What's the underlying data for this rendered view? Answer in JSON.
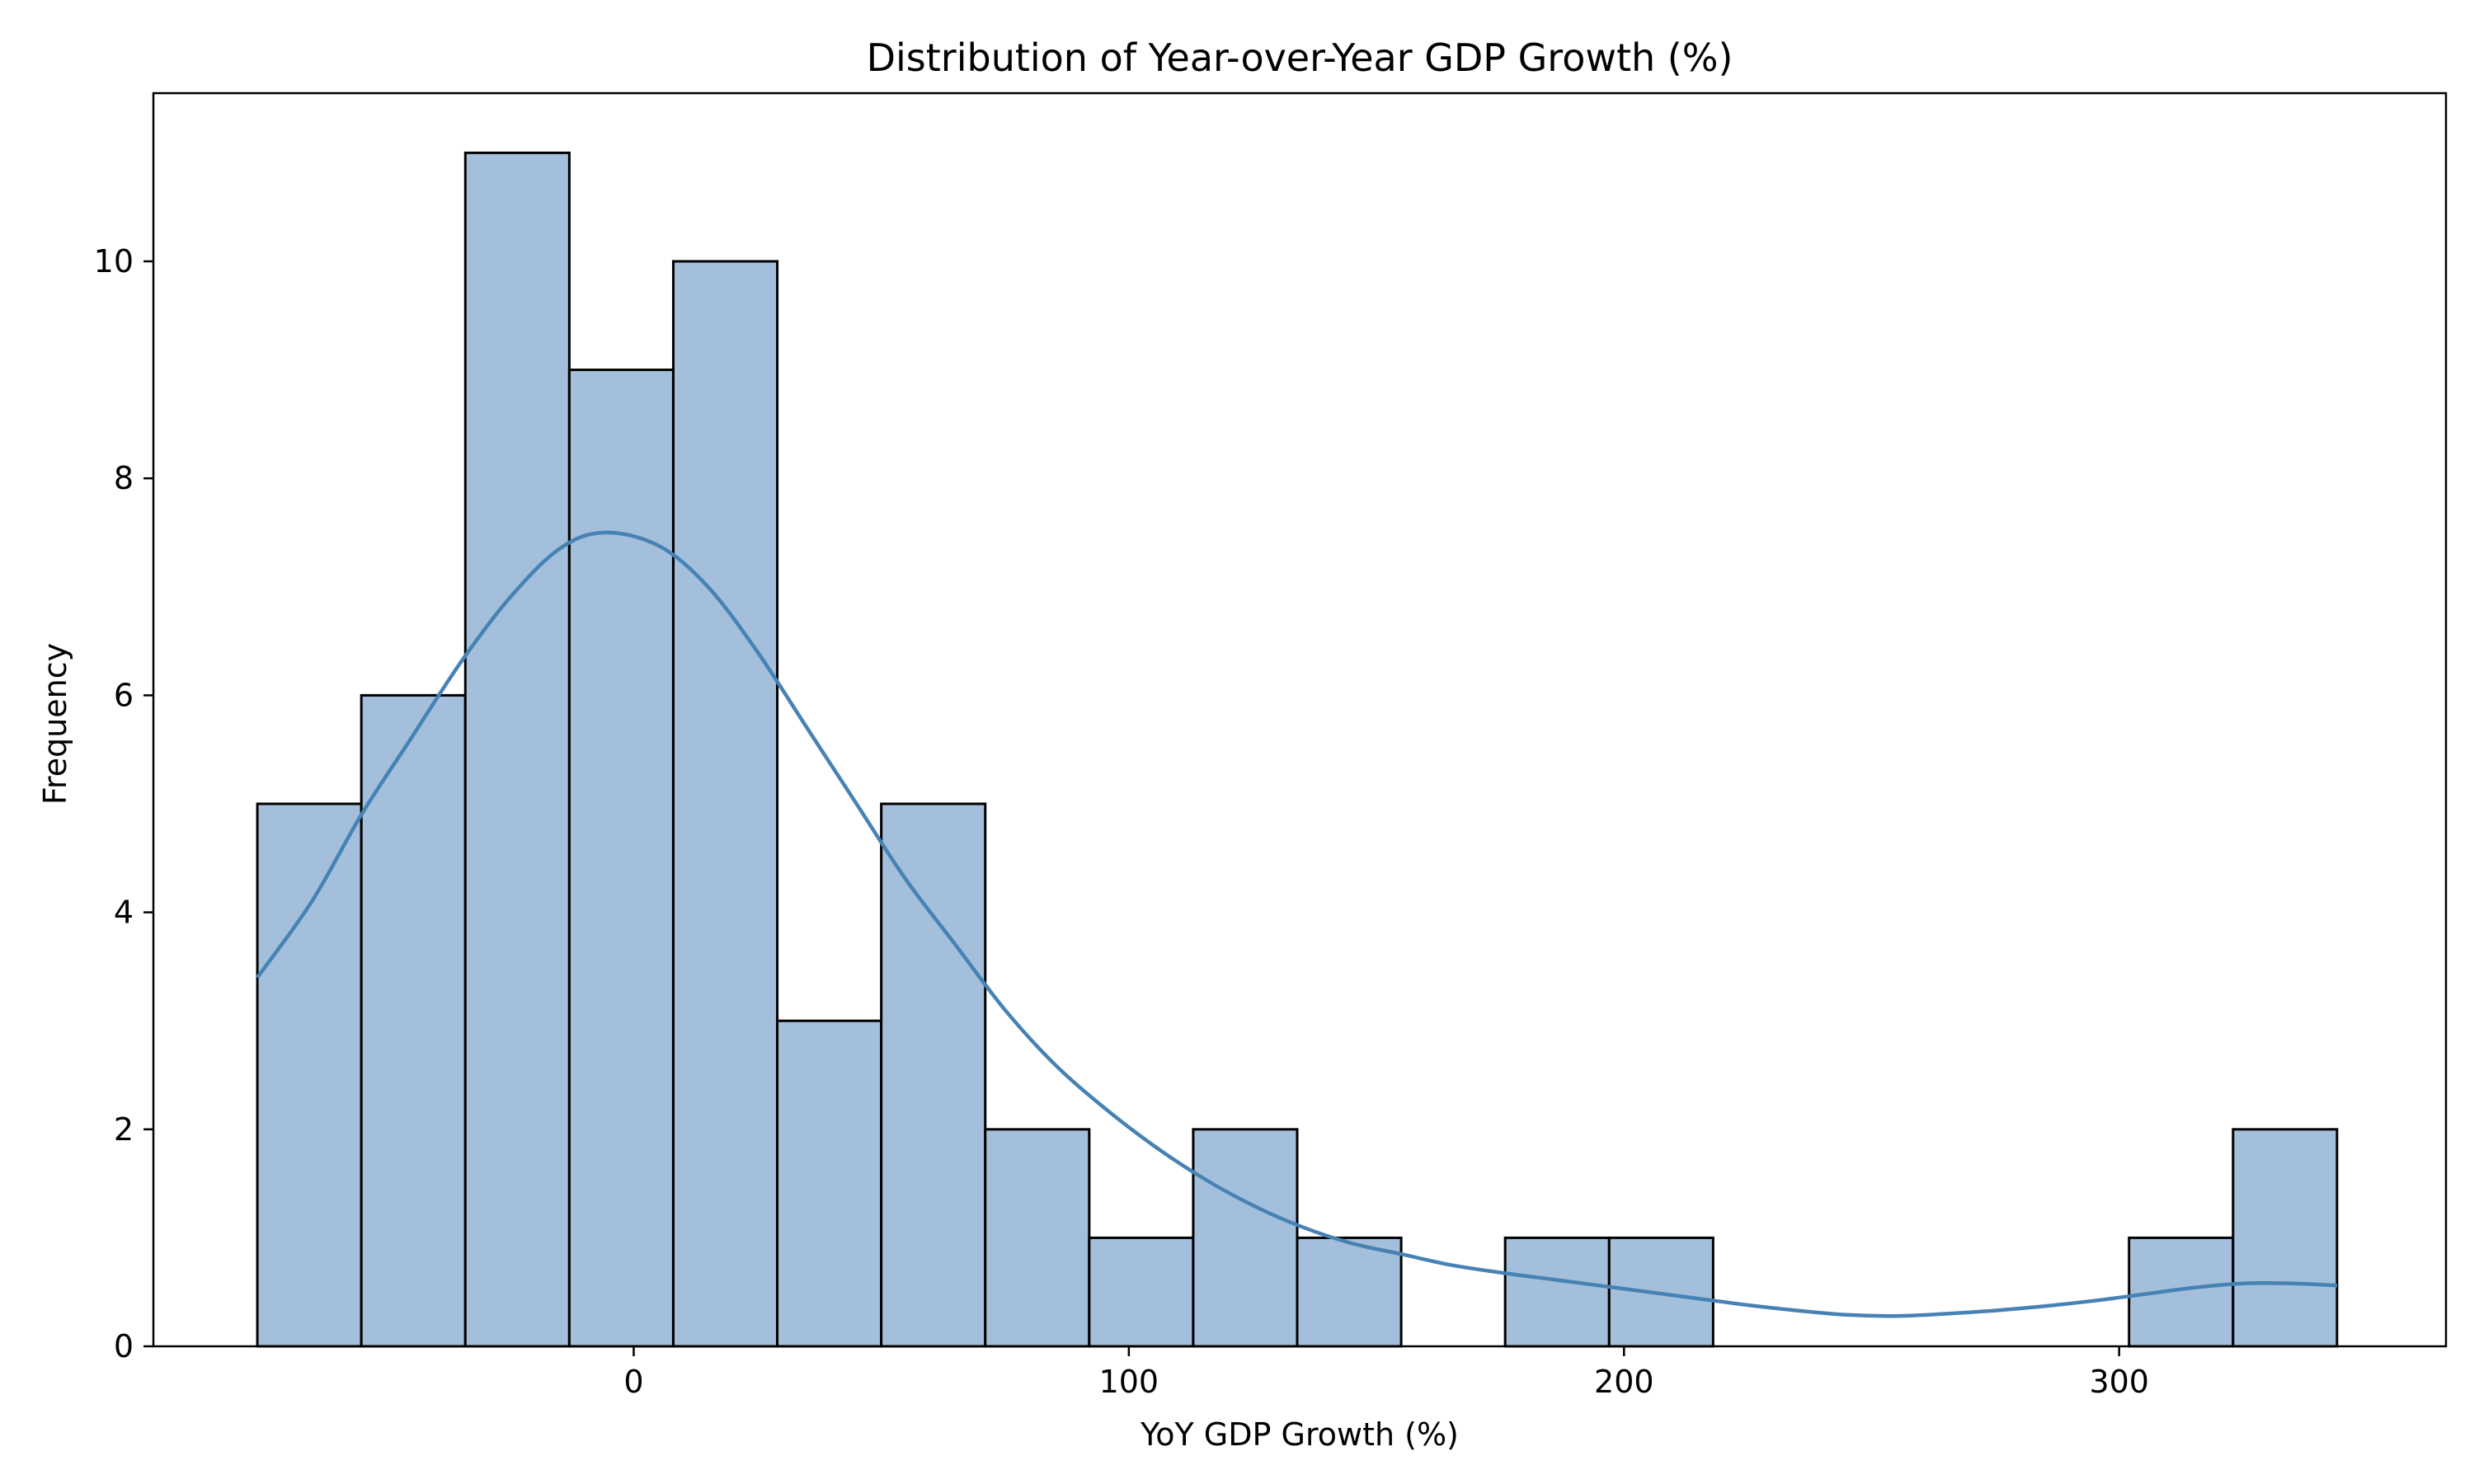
{
  "chart_data": {
    "type": "bar",
    "subtype": "histogram_with_kde",
    "title": "Distribution of Year-over-Year GDP Growth (%)",
    "xlabel": "YoY GDP Growth (%)",
    "ylabel": "Frequency",
    "xlim": [
      -97,
      366
    ],
    "ylim": [
      0,
      11.55
    ],
    "x_ticks": [
      0,
      100,
      200,
      300
    ],
    "y_ticks": [
      0,
      2,
      4,
      6,
      8,
      10
    ],
    "grid": false,
    "legend": "none",
    "bins": [
      {
        "start": -76,
        "end": -55,
        "count": 5
      },
      {
        "start": -55,
        "end": -34,
        "count": 6
      },
      {
        "start": -34,
        "end": -13,
        "count": 11
      },
      {
        "start": -13,
        "end": 8,
        "count": 9
      },
      {
        "start": 8,
        "end": 29,
        "count": 10
      },
      {
        "start": 29,
        "end": 50,
        "count": 3
      },
      {
        "start": 50,
        "end": 71,
        "count": 5
      },
      {
        "start": 71,
        "end": 92,
        "count": 2
      },
      {
        "start": 92,
        "end": 113,
        "count": 1
      },
      {
        "start": 113,
        "end": 134,
        "count": 2
      },
      {
        "start": 134,
        "end": 155,
        "count": 1
      },
      {
        "start": 155,
        "end": 176,
        "count": 0
      },
      {
        "start": 176,
        "end": 197,
        "count": 1
      },
      {
        "start": 197,
        "end": 218,
        "count": 1
      },
      {
        "start": 218,
        "end": 239,
        "count": 0
      },
      {
        "start": 239,
        "end": 260,
        "count": 0
      },
      {
        "start": 260,
        "end": 281,
        "count": 0
      },
      {
        "start": 281,
        "end": 302,
        "count": 0
      },
      {
        "start": 302,
        "end": 323,
        "count": 1
      },
      {
        "start": 323,
        "end": 344,
        "count": 2
      }
    ],
    "kde": {
      "x": [
        -76,
        -65,
        -55,
        -45,
        -35,
        -25,
        -15,
        -6,
        5,
        15,
        25,
        35,
        45,
        55,
        65,
        75,
        85,
        95,
        105,
        115,
        125,
        135,
        145,
        155,
        165,
        175,
        185,
        195,
        205,
        215,
        225,
        235,
        245,
        255,
        265,
        275,
        285,
        295,
        305,
        315,
        325,
        335,
        344
      ],
      "y": [
        3.4,
        4.1,
        4.9,
        5.6,
        6.3,
        6.9,
        7.35,
        7.5,
        7.38,
        7.0,
        6.4,
        5.7,
        5.0,
        4.3,
        3.7,
        3.1,
        2.6,
        2.2,
        1.85,
        1.55,
        1.3,
        1.1,
        0.95,
        0.85,
        0.75,
        0.68,
        0.62,
        0.56,
        0.5,
        0.44,
        0.38,
        0.33,
        0.29,
        0.28,
        0.3,
        0.33,
        0.37,
        0.42,
        0.48,
        0.54,
        0.58,
        0.58,
        0.56
      ]
    },
    "colors": {
      "bar_fill": "#a3bfdb",
      "bar_edge": "#000000",
      "kde_line": "#4682b4"
    }
  }
}
